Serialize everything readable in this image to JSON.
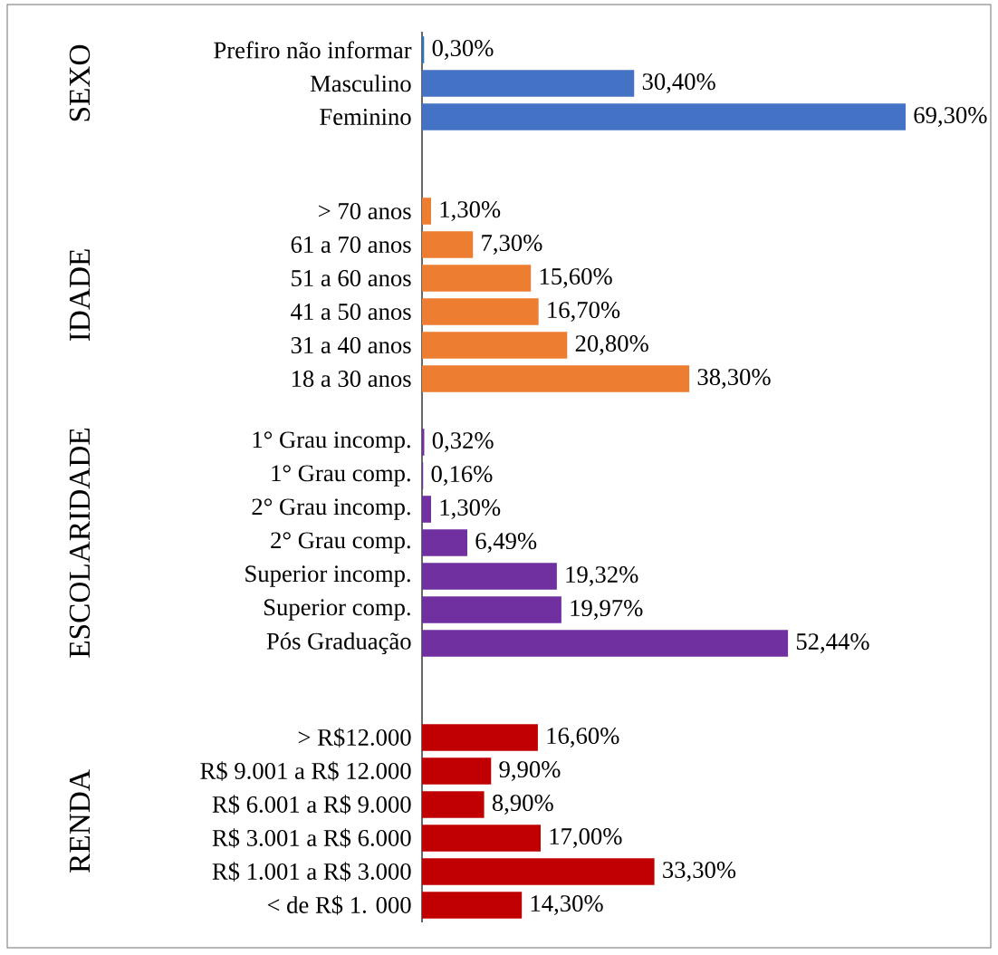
{
  "chart_data": [
    {
      "type": "bar",
      "orientation": "horizontal",
      "ylabel": "SEXO",
      "categories": [
        "Prefiro não informar",
        "Masculino",
        "Feminino"
      ],
      "values": [
        0.3,
        30.4,
        69.3
      ],
      "value_labels": [
        "0,30%",
        "30,40%",
        "69,30%"
      ],
      "colors": [
        "#2e75b6",
        "#4472c4",
        "#4472c4"
      ]
    },
    {
      "type": "bar",
      "orientation": "horizontal",
      "ylabel": "IDADE",
      "categories": [
        "> 70 anos",
        "61 a 70 anos",
        "51 a 60 anos",
        "41 a 50 anos",
        "31 a 40 anos",
        "18 a 30 anos"
      ],
      "values": [
        1.3,
        7.3,
        15.6,
        16.7,
        20.8,
        38.3
      ],
      "value_labels": [
        "1,30%",
        "7,30%",
        "15,60%",
        "16,70%",
        "20,80%",
        "38,30%"
      ],
      "color": "#ed7d31"
    },
    {
      "type": "bar",
      "orientation": "horizontal",
      "ylabel": "ESCOLARIDADE",
      "categories": [
        "1° Grau incomp.",
        "1° Grau comp.",
        "2° Grau incomp.",
        "2° Grau comp.",
        "Superior incomp.",
        "Superior comp.",
        "Pós Graduação"
      ],
      "values": [
        0.32,
        0.16,
        1.3,
        6.49,
        19.32,
        19.97,
        52.44
      ],
      "value_labels": [
        "0,32%",
        "0,16%",
        "1,30%",
        "6,49%",
        "19,32%",
        "19,97%",
        "52,44%"
      ],
      "color": "#7030a0"
    },
    {
      "type": "bar",
      "orientation": "horizontal",
      "ylabel": "RENDA",
      "categories": [
        "> R$12.000",
        "R$ 9.001 a R$ 12.000",
        "R$ 6.001 a R$ 9.000",
        "R$ 3.001 a R$ 6.000",
        "R$ 1.001 a R$ 3.000",
        "< de R$ 1. 000"
      ],
      "values": [
        16.6,
        9.9,
        8.9,
        17.0,
        33.3,
        14.3
      ],
      "value_labels": [
        "16,60%",
        "9,90%",
        "8,90%",
        "17,00%",
        "33,30%",
        "14,30%"
      ],
      "color": "#c00000"
    }
  ]
}
